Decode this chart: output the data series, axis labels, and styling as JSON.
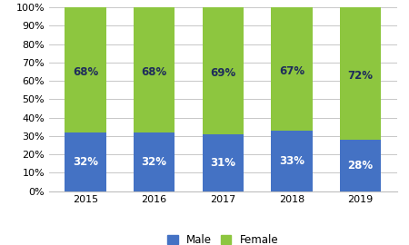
{
  "years": [
    "2015",
    "2016",
    "2017",
    "2018",
    "2019"
  ],
  "male": [
    32,
    32,
    31,
    33,
    28
  ],
  "female": [
    68,
    68,
    69,
    67,
    72
  ],
  "male_color": "#4472C4",
  "female_color": "#8DC63F",
  "male_label": "Male",
  "female_label": "Female",
  "male_text_color": "#FFFFFF",
  "female_text_color": "#1F2D5A",
  "ylim": [
    0,
    100
  ],
  "yticks": [
    0,
    10,
    20,
    30,
    40,
    50,
    60,
    70,
    80,
    90,
    100
  ],
  "ytick_labels": [
    "0%",
    "10%",
    "20%",
    "30%",
    "40%",
    "50%",
    "60%",
    "70%",
    "80%",
    "90%",
    "100%"
  ],
  "bar_width": 0.6,
  "label_fontsize": 8.5,
  "tick_fontsize": 8,
  "legend_fontsize": 8.5,
  "background_color": "#FFFFFF",
  "grid_color": "#BEBEBE"
}
